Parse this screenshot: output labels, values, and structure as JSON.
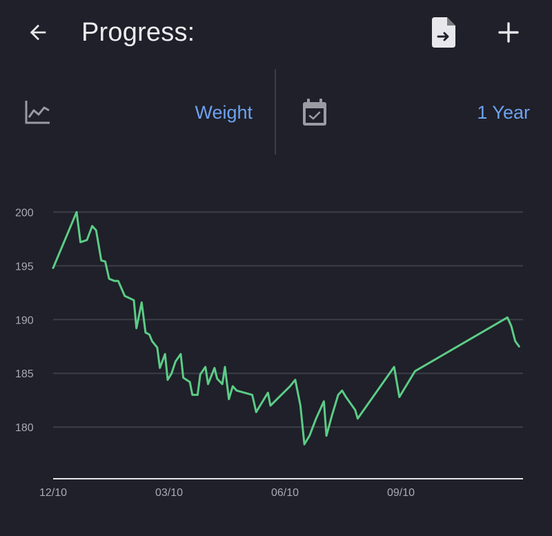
{
  "header": {
    "title": "Progress:",
    "back_icon": "arrow-left-icon",
    "export_icon": "file-export-icon",
    "add_icon": "plus-icon"
  },
  "filters": {
    "metric": {
      "icon": "line-chart-icon",
      "value": "Weight"
    },
    "range": {
      "icon": "calendar-check-icon",
      "value": "1 Year"
    }
  },
  "colors": {
    "background": "#1f2029",
    "accent": "#6ea2f0",
    "line": "#5ccc86",
    "grid": "#3c3e49",
    "icon": "#9a9ba3",
    "axis": "#e6e6ea"
  },
  "chart_data": {
    "type": "line",
    "title": "",
    "xlabel": "",
    "ylabel": "",
    "x_ticks": [
      "12/10",
      "03/10",
      "06/10",
      "09/10"
    ],
    "y_ticks": [
      180,
      185,
      190,
      195,
      200
    ],
    "ylim": [
      175.2,
      202.4
    ],
    "xlim": [
      0,
      361
    ],
    "grid": "horizontal",
    "series": [
      {
        "name": "",
        "points": [
          [
            0,
            194.8
          ],
          [
            18,
            200
          ],
          [
            21,
            197.2
          ],
          [
            26,
            197.4
          ],
          [
            30,
            198.7
          ],
          [
            33,
            198.3
          ],
          [
            37,
            195.5
          ],
          [
            40,
            195.4
          ],
          [
            43,
            193.8
          ],
          [
            47,
            193.6
          ],
          [
            50,
            193.6
          ],
          [
            55,
            192.2
          ],
          [
            62,
            191.8
          ],
          [
            64,
            189.2
          ],
          [
            68,
            191.6
          ],
          [
            71,
            188.8
          ],
          [
            74,
            188.6
          ],
          [
            76,
            188.0
          ],
          [
            80,
            187.4
          ],
          [
            82,
            185.5
          ],
          [
            86,
            186.8
          ],
          [
            88,
            184.4
          ],
          [
            91,
            185.0
          ],
          [
            94,
            186.1
          ],
          [
            98,
            186.8
          ],
          [
            100,
            184.6
          ],
          [
            105,
            184.2
          ],
          [
            107,
            183.0
          ],
          [
            111,
            183.0
          ],
          [
            113,
            184.9
          ],
          [
            117,
            185.6
          ],
          [
            119,
            184.0
          ],
          [
            124,
            185.5
          ],
          [
            126,
            184.5
          ],
          [
            130,
            184.0
          ],
          [
            132,
            185.6
          ],
          [
            135,
            182.6
          ],
          [
            138,
            183.8
          ],
          [
            141,
            183.4
          ],
          [
            153,
            183.0
          ],
          [
            156,
            181.4
          ],
          [
            160,
            182.2
          ],
          [
            165,
            183.2
          ],
          [
            167,
            182.0
          ],
          [
            182,
            183.8
          ],
          [
            186,
            184.4
          ],
          [
            190,
            182.0
          ],
          [
            193,
            178.4
          ],
          [
            197,
            179.2
          ],
          [
            202,
            180.8
          ],
          [
            208,
            182.4
          ],
          [
            210,
            179.2
          ],
          [
            214,
            181.0
          ],
          [
            219,
            183.0
          ],
          [
            222,
            183.4
          ],
          [
            225,
            182.8
          ],
          [
            232,
            181.6
          ],
          [
            234,
            180.8
          ],
          [
            262,
            185.6
          ],
          [
            266,
            182.8
          ],
          [
            278,
            185.2
          ],
          [
            349,
            190.2
          ],
          [
            352,
            189.4
          ],
          [
            355,
            188.0
          ],
          [
            358,
            187.5
          ]
        ]
      }
    ]
  }
}
